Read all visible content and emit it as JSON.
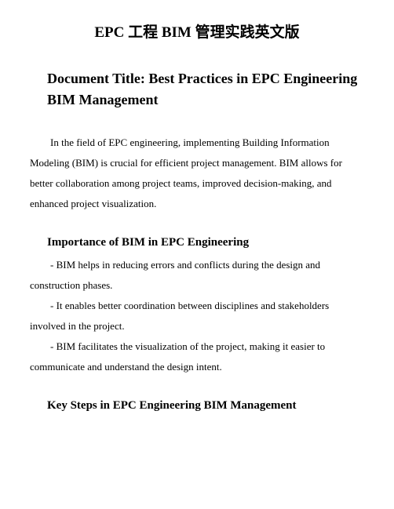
{
  "title": "EPC 工程 BIM 管理实践英文版",
  "subtitle": "Document Title: Best Practices in EPC Engineering BIM Management",
  "intro": "In the field of EPC engineering, implementing Building Information Modeling (BIM) is crucial for efficient project management. BIM allows for better collaboration among project teams, improved decision-making, and enhanced project visualization.",
  "section1": {
    "head": "Importance of BIM in EPC Engineering",
    "p1": "- BIM helps in reducing errors and conflicts during the design and construction phases.",
    "p2": "- It enables better coordination between disciplines and stakeholders involved in the project.",
    "p3": "- BIM facilitates the visualization of the project, making it easier to communicate and understand the design intent."
  },
  "section2": {
    "head": "Key Steps in EPC Engineering BIM Management"
  }
}
